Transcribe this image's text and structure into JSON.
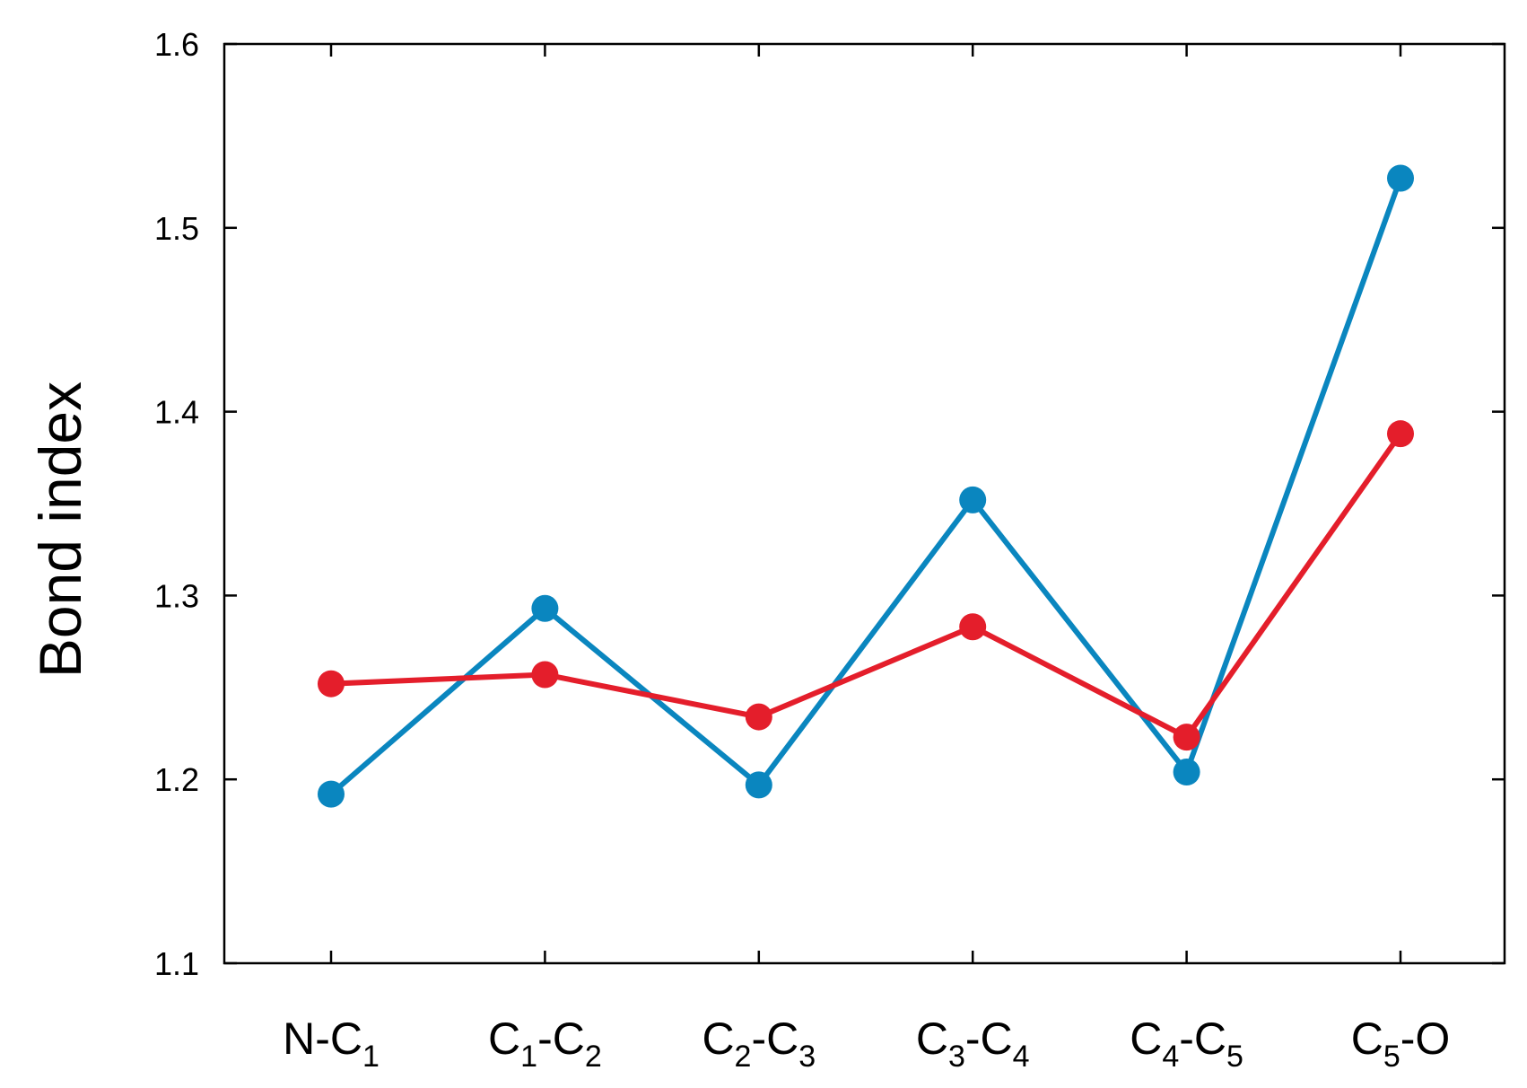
{
  "chart_data": {
    "type": "line",
    "categories": [
      "N-C1",
      "C1-C2",
      "C2-C3",
      "C3-C4",
      "C4-C5",
      "C5-O"
    ],
    "category_labels": [
      [
        {
          "t": "N-C"
        },
        {
          "t": "1",
          "sub": true
        }
      ],
      [
        {
          "t": "C"
        },
        {
          "t": "1",
          "sub": true
        },
        {
          "t": "-C"
        },
        {
          "t": "2",
          "sub": true
        }
      ],
      [
        {
          "t": "C"
        },
        {
          "t": "2",
          "sub": true
        },
        {
          "t": "-C"
        },
        {
          "t": "3",
          "sub": true
        }
      ],
      [
        {
          "t": "C"
        },
        {
          "t": "3",
          "sub": true
        },
        {
          "t": "-C"
        },
        {
          "t": "4",
          "sub": true
        }
      ],
      [
        {
          "t": "C"
        },
        {
          "t": "4",
          "sub": true
        },
        {
          "t": "-C"
        },
        {
          "t": "5",
          "sub": true
        }
      ],
      [
        {
          "t": "C"
        },
        {
          "t": "5",
          "sub": true
        },
        {
          "t": "-O"
        }
      ]
    ],
    "series": [
      {
        "color": "#0a86bf",
        "values": [
          1.192,
          1.293,
          1.197,
          1.352,
          1.204,
          1.527
        ]
      },
      {
        "color": "#e41e2b",
        "values": [
          1.252,
          1.257,
          1.234,
          1.283,
          1.223,
          1.388
        ]
      }
    ],
    "ylabel": "Bond index",
    "xlabel": "",
    "ylim": [
      1.1,
      1.6
    ],
    "yticks": [
      "1.1",
      "1.2",
      "1.3",
      "1.4",
      "1.5",
      "1.6"
    ],
    "grid": false,
    "legend": "none"
  }
}
